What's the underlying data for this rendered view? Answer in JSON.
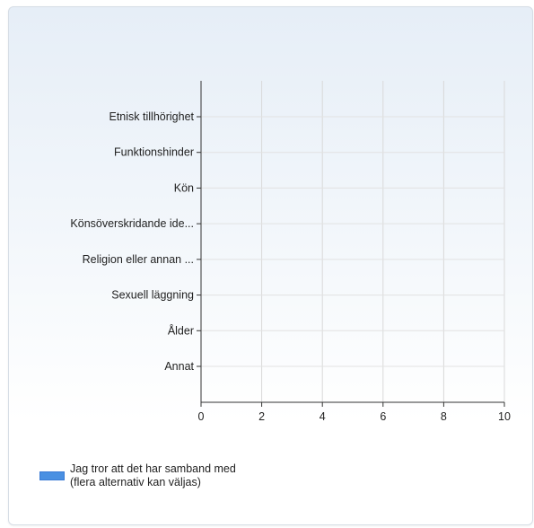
{
  "chart_data": {
    "type": "bar",
    "orientation": "horizontal",
    "categories": [
      "Etnisk tillhörighet",
      "Funktionshinder",
      "Kön",
      "Könsöverskridande ide...",
      "Religion eller annan ...",
      "Sexuell läggning",
      "Ålder",
      "Annat"
    ],
    "series": [
      {
        "name": "Jag tror att det har samband med (flera alternativ kan väljas)",
        "color": "#4a90e2",
        "values": [
          0,
          0,
          0,
          0,
          0,
          0,
          0,
          0
        ]
      }
    ],
    "xlim": [
      0,
      10
    ],
    "xticks": [
      0,
      2,
      4,
      6,
      8,
      10
    ],
    "grid": true,
    "legend_position": "bottom-left"
  }
}
